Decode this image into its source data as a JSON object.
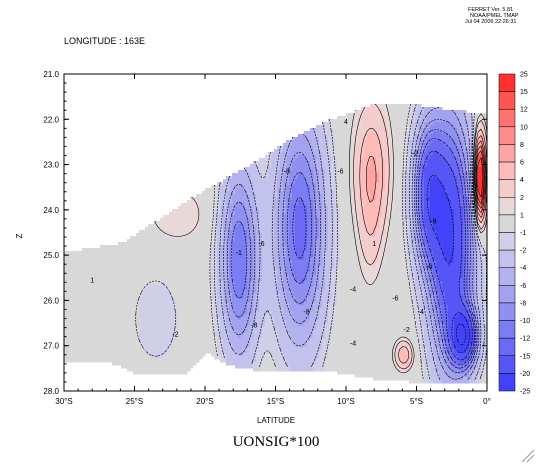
{
  "header": {
    "ferret_lines": [
      "FERRET Ver. 5.81",
      "NOAA/PMEL TMAP",
      "Jul 04 2006 22:26:31"
    ],
    "subtitle": "LONGITUDE : 163E"
  },
  "chart_data": {
    "type": "heatmap",
    "title": "UONSIG*100",
    "xlabel": "LATITUDE",
    "ylabel": "Z",
    "x_ticks": [
      "30°S",
      "25°S",
      "20°S",
      "15°S",
      "10°S",
      "5°S",
      "0°"
    ],
    "x_tick_values": [
      -30,
      -25,
      -20,
      -15,
      -10,
      -5,
      0
    ],
    "y_ticks": [
      "21.0",
      "22.0",
      "23.0",
      "24.0",
      "25.0",
      "26.0",
      "27.0",
      "28.0"
    ],
    "y_tick_values": [
      21,
      22,
      23,
      24,
      25,
      26,
      27,
      28
    ],
    "xlim": [
      -30,
      0
    ],
    "ylim": [
      28,
      21
    ],
    "y_reversed": true,
    "colorbar": {
      "labels": [
        "25",
        "15",
        "12",
        "10",
        "8",
        "6",
        "4",
        "2",
        "1",
        "-1",
        "-2",
        "-4",
        "-6",
        "-8",
        "-10",
        "-12",
        "-15",
        "-20",
        "-25"
      ],
      "bin_colors": [
        "#ff3030",
        "#ff5454",
        "#ff7272",
        "#ff8c8c",
        "#ffa4a4",
        "#ffbaba",
        "#f4cccc",
        "#e8d8d8",
        "#d8d8d8",
        "#cfcfe8",
        "#c2c2ec",
        "#b2b2ee",
        "#a2a2f0",
        "#9090f2",
        "#7c7cf4",
        "#6a6af6",
        "#5656f8",
        "#4242fa"
      ]
    },
    "fill_value_color": "#d9d9d9",
    "blobs": [
      {
        "cx": -2.6,
        "cy": 24.7,
        "rx": 1.5,
        "ry": 2.6,
        "v": -20
      },
      {
        "cx": -4.2,
        "cy": 23.6,
        "rx": 1.1,
        "ry": 1.5,
        "v": -15
      },
      {
        "cx": -8.2,
        "cy": 23.1,
        "rx": 1.2,
        "ry": 1.4,
        "v": 6
      },
      {
        "cx": -8.3,
        "cy": 24.5,
        "rx": 0.8,
        "ry": 1.2,
        "v": 2
      },
      {
        "cx": -13.3,
        "cy": 24.4,
        "rx": 1.7,
        "ry": 2.4,
        "v": -13
      },
      {
        "cx": -17.6,
        "cy": 25.1,
        "rx": 1.3,
        "ry": 2.0,
        "v": -12
      },
      {
        "cx": -22.0,
        "cy": 24.1,
        "rx": 2.0,
        "ry": 0.6,
        "v": 2
      },
      {
        "cx": -23.5,
        "cy": 26.4,
        "rx": 1.7,
        "ry": 1.0,
        "v": -2
      },
      {
        "cx": -29.0,
        "cy": 25.8,
        "rx": 1.0,
        "ry": 0.8,
        "v": 1
      },
      {
        "cx": -5.9,
        "cy": 27.2,
        "rx": 0.6,
        "ry": 0.3,
        "v": 6
      },
      {
        "cx": -0.5,
        "cy": 23.3,
        "rx": 0.4,
        "ry": 0.9,
        "v": 22
      },
      {
        "cx": -1.7,
        "cy": 26.8,
        "rx": 0.9,
        "ry": 0.6,
        "v": -20
      }
    ],
    "top_boundary": [
      [
        -30,
        24.9
      ],
      [
        -26,
        24.7
      ],
      [
        -23.5,
        24.2
      ],
      [
        -20,
        23.5
      ],
      [
        -17,
        23.0
      ],
      [
        -14,
        22.4
      ],
      [
        -11.5,
        22.0
      ],
      [
        -9.5,
        21.8
      ],
      [
        -8,
        21.6
      ],
      [
        -6,
        21.6
      ],
      [
        -4,
        21.7
      ],
      [
        -1.5,
        21.8
      ],
      [
        0,
        21.8
      ]
    ],
    "bottom_boundary": [
      [
        -30,
        27.3
      ],
      [
        -27,
        27.3
      ],
      [
        -25,
        27.6
      ],
      [
        -21.5,
        27.6
      ],
      [
        -20,
        27.1
      ],
      [
        -18.5,
        27.4
      ],
      [
        -16.5,
        27.5
      ],
      [
        -12,
        27.5
      ],
      [
        -8,
        27.7
      ],
      [
        -4,
        27.8
      ],
      [
        0,
        27.8
      ]
    ],
    "contour_labels": [
      {
        "x": -10.0,
        "y": 22.1,
        "text": "4"
      },
      {
        "x": -10.4,
        "y": 23.2,
        "text": "-6"
      },
      {
        "x": -14.2,
        "y": 23.2,
        "text": "-8"
      },
      {
        "x": -16.0,
        "y": 24.8,
        "text": "-6"
      },
      {
        "x": -5.1,
        "y": 22.8,
        "text": "-2"
      },
      {
        "x": -3.8,
        "y": 24.3,
        "text": "-8"
      },
      {
        "x": -4.1,
        "y": 25.3,
        "text": "-6"
      },
      {
        "x": -4.7,
        "y": 26.3,
        "text": "-4"
      },
      {
        "x": -5.7,
        "y": 26.7,
        "text": "-2"
      },
      {
        "x": -9.5,
        "y": 27.0,
        "text": "-4"
      },
      {
        "x": -12.8,
        "y": 26.3,
        "text": "-8"
      },
      {
        "x": -16.5,
        "y": 26.6,
        "text": "-8"
      },
      {
        "x": -17.6,
        "y": 25.0,
        "text": "-1"
      },
      {
        "x": -22.1,
        "y": 26.8,
        "text": "-2"
      },
      {
        "x": -28.0,
        "y": 25.6,
        "text": "1"
      },
      {
        "x": -6.5,
        "y": 26.0,
        "text": "-6"
      },
      {
        "x": -8.0,
        "y": 24.8,
        "text": "1"
      },
      {
        "x": -9.5,
        "y": 25.8,
        "text": "-4"
      }
    ]
  }
}
